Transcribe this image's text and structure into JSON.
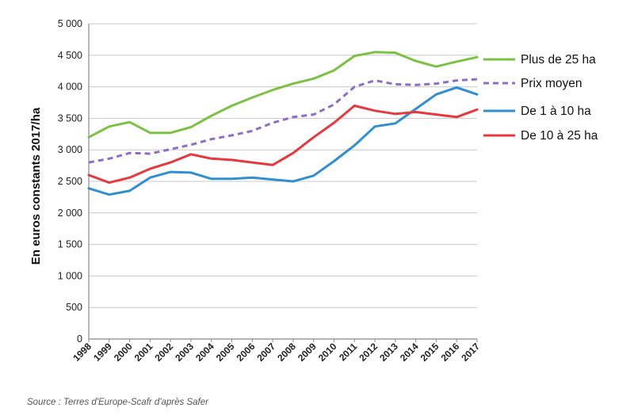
{
  "chart_data": {
    "type": "line",
    "title": "",
    "xlabel": "",
    "ylabel": "En euros constants 2017/ha",
    "ylim": [
      0,
      5000
    ],
    "yticks": [
      0,
      500,
      1000,
      1500,
      2000,
      2500,
      3000,
      3500,
      4000,
      4500,
      5000
    ],
    "ytick_labels": [
      "0",
      "500",
      "1 000",
      "1 500",
      "2 000",
      "2 500",
      "3 000",
      "3 500",
      "4 000",
      "4 500",
      "5 000"
    ],
    "grid": true,
    "legend_position": "right",
    "categories": [
      "1998",
      "1999",
      "2000",
      "2001",
      "2002",
      "2003",
      "2004",
      "2005",
      "2006",
      "2007",
      "2008",
      "2009",
      "2010",
      "2011",
      "2012",
      "2013",
      "2014",
      "2015",
      "2016",
      "2017"
    ],
    "series": [
      {
        "name": "Plus de 25 ha",
        "color": "#7cc242",
        "dash": "solid",
        "values": [
          3200,
          3370,
          3440,
          3270,
          3270,
          3360,
          3540,
          3700,
          3830,
          3950,
          4050,
          4130,
          4260,
          4490,
          4550,
          4540,
          4410,
          4320,
          4400,
          4470
        ]
      },
      {
        "name": "Prix moyen",
        "color": "#8b6fc6",
        "dash": "dashed",
        "values": [
          2800,
          2860,
          2950,
          2940,
          3010,
          3080,
          3170,
          3230,
          3300,
          3430,
          3520,
          3560,
          3720,
          4000,
          4100,
          4040,
          4030,
          4050,
          4100,
          4120
        ]
      },
      {
        "name": "De 1 à 10 ha",
        "color": "#2f8fd0",
        "dash": "solid",
        "values": [
          2390,
          2290,
          2350,
          2560,
          2650,
          2640,
          2540,
          2540,
          2560,
          2530,
          2500,
          2590,
          2820,
          3070,
          3370,
          3420,
          3650,
          3880,
          3990,
          3880
        ]
      },
      {
        "name": "De 10 à 25 ha",
        "color": "#e8383d",
        "dash": "solid",
        "values": [
          2600,
          2480,
          2560,
          2700,
          2800,
          2930,
          2860,
          2840,
          2800,
          2760,
          2950,
          3200,
          3430,
          3700,
          3620,
          3570,
          3600,
          3560,
          3520,
          3640
        ]
      }
    ],
    "source": "Source : Terres d'Europe-Scafr d'après Safer"
  }
}
